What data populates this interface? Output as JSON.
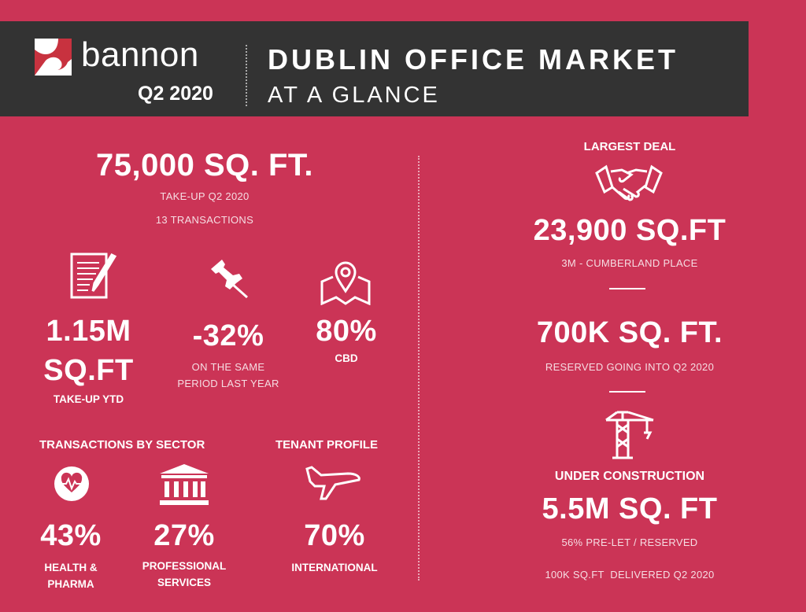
{
  "header": {
    "brand": "bannon",
    "period": "Q2 2020",
    "title": "DUBLIN OFFICE MARKET",
    "subtitle": "AT A GLANCE",
    "brand_color": "#c8323f",
    "background": "#333333"
  },
  "theme": {
    "background": "#cb3456"
  },
  "takeup": {
    "value": "75,000 SQ. FT.",
    "line1": "TAKE-UP Q2 2020",
    "line2": "13 TRANSACTIONS"
  },
  "stats": [
    {
      "icon": "document-pen-icon",
      "value_line1": "1.15M",
      "value_line2": "SQ.FT",
      "label": "TAKE-UP YTD"
    },
    {
      "icon": "pushpin-icon",
      "value": "-32%",
      "label_line1": "ON THE SAME",
      "label_line2": "PERIOD LAST YEAR"
    },
    {
      "icon": "map-pin-icon",
      "value": "80%",
      "label": "CBD"
    }
  ],
  "sector": {
    "heading": "TRANSACTIONS BY SECTOR",
    "items": [
      {
        "icon": "heart-pulse-icon",
        "value": "43%",
        "label_line1": "HEALTH &",
        "label_line2": "PHARMA"
      },
      {
        "icon": "bank-building-icon",
        "value": "27%",
        "label_line1": "PROFESSIONAL",
        "label_line2": "SERVICES"
      }
    ]
  },
  "tenant": {
    "heading": "TENANT PROFILE",
    "icon": "airplane-icon",
    "value": "70%",
    "label": "INTERNATIONAL"
  },
  "right": {
    "largest_heading": "LARGEST DEAL",
    "largest_icon": "handshake-icon",
    "largest_value": "23,900 SQ.FT",
    "largest_label": "3M - CUMBERLAND PLACE",
    "reserved_value": "700K SQ. FT.",
    "reserved_label": "RESERVED GOING INTO Q2 2020",
    "construction_icon": "crane-icon",
    "construction_heading": "UNDER CONSTRUCTION",
    "construction_value": "5.5M SQ. FT",
    "construction_label": "56% PRE-LET / RESERVED",
    "delivered_label": "100K SQ.FT  DELIVERED Q2 2020"
  }
}
